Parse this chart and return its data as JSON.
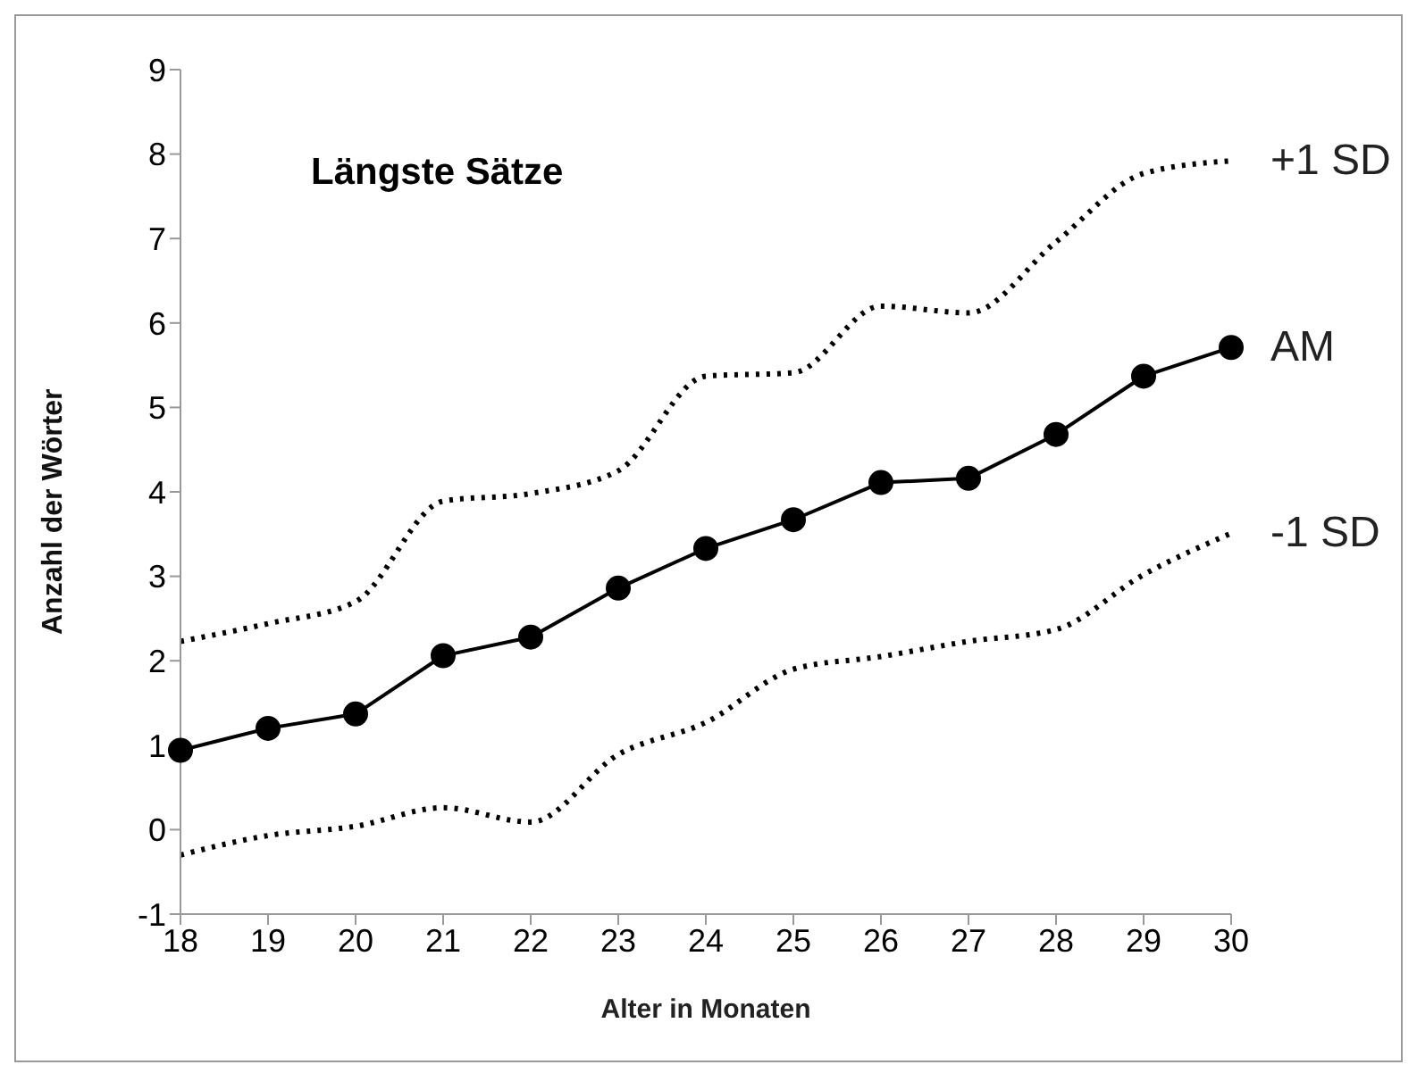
{
  "chart_data": {
    "type": "line",
    "title": "Längste Sätze",
    "xlabel": "Alter in Monaten",
    "ylabel": "Anzahl der Wörter",
    "x": [
      18,
      19,
      20,
      21,
      22,
      23,
      24,
      25,
      26,
      27,
      28,
      29,
      30
    ],
    "series": [
      {
        "name": "+1 SD",
        "color": "#000000",
        "line_style": "dotted",
        "marker": "none",
        "values": [
          2.23,
          2.44,
          2.7,
          3.89,
          3.98,
          4.25,
          5.37,
          5.41,
          6.2,
          6.12,
          6.96,
          7.77,
          7.92
        ]
      },
      {
        "name": "AM",
        "color": "#000000",
        "line_style": "solid",
        "marker": "circle",
        "values": [
          0.94,
          1.2,
          1.37,
          2.06,
          2.28,
          2.86,
          3.33,
          3.67,
          4.11,
          4.16,
          4.68,
          5.37,
          5.71
        ]
      },
      {
        "name": "-1 SD",
        "color": "#000000",
        "line_style": "dotted",
        "marker": "none",
        "values": [
          -0.3,
          -0.07,
          0.04,
          0.26,
          0.09,
          0.89,
          1.27,
          1.9,
          2.05,
          2.23,
          2.37,
          3.02,
          3.51
        ]
      }
    ],
    "xlim": [
      18,
      30
    ],
    "xticks": [
      18,
      19,
      20,
      21,
      22,
      23,
      24,
      25,
      26,
      27,
      28,
      29,
      30
    ],
    "ylim": [
      -1,
      9
    ],
    "yticks": [
      -1,
      0,
      1,
      2,
      3,
      4,
      5,
      6,
      7,
      8,
      9
    ],
    "grid": false,
    "legend": false
  }
}
